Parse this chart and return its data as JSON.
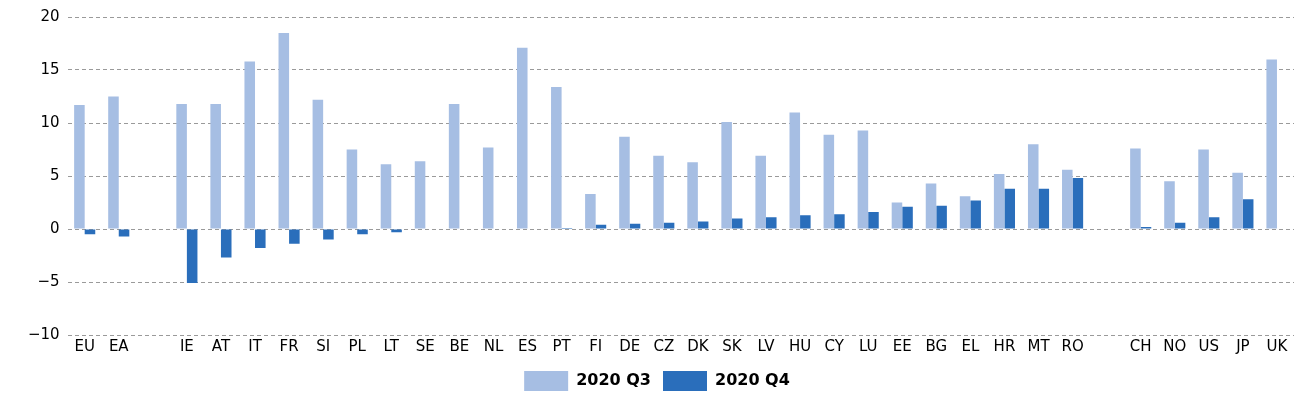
{
  "chart_data": {
    "type": "bar",
    "categories": [
      "EU",
      "EA",
      null,
      "IE",
      "AT",
      "IT",
      "FR",
      "SI",
      "PL",
      "LT",
      "SE",
      "BE",
      "NL",
      "ES",
      "PT",
      "FI",
      "DE",
      "CZ",
      "DK",
      "SK",
      "LV",
      "HU",
      "CY",
      "LU",
      "EE",
      "BG",
      "EL",
      "HR",
      "MT",
      "RO",
      null,
      "CH",
      "NO",
      "US",
      "JP",
      "UK"
    ],
    "series": [
      {
        "name": "2020 Q3",
        "color": "#a6bee3",
        "values": [
          11.7,
          12.5,
          null,
          11.8,
          11.8,
          15.8,
          18.5,
          12.2,
          7.5,
          6.1,
          6.4,
          11.8,
          7.7,
          17.1,
          13.4,
          3.3,
          8.7,
          6.9,
          6.3,
          10.1,
          6.9,
          11.0,
          8.9,
          9.3,
          2.5,
          4.3,
          3.1,
          5.2,
          8.0,
          5.6,
          null,
          7.6,
          4.5,
          7.5,
          5.3,
          16.0
        ]
      },
      {
        "name": "2020 Q4",
        "color": "#2a6ebb",
        "values": [
          -0.5,
          -0.7,
          null,
          -5.1,
          -2.7,
          -1.8,
          -1.4,
          -1.0,
          -0.5,
          -0.3,
          null,
          null,
          null,
          null,
          0.1,
          0.4,
          0.5,
          0.6,
          0.7,
          1.0,
          1.1,
          1.3,
          1.4,
          1.6,
          2.1,
          2.2,
          2.7,
          3.8,
          3.8,
          4.8,
          null,
          0.2,
          0.6,
          1.1,
          2.8,
          null
        ]
      }
    ],
    "ylim": [
      -10,
      20
    ],
    "yticks": [
      -10,
      -5,
      0,
      5,
      10,
      15,
      20
    ],
    "grid": "y",
    "legend": "bottom"
  }
}
